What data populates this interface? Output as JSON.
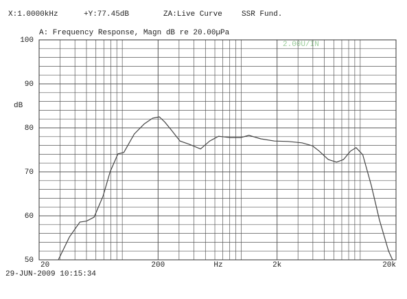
{
  "chart_data": {
    "type": "line",
    "header": [
      "X:1.0000kHz",
      "+Y:77.45dB",
      "ZA:Live Curve",
      "SSR Fund."
    ],
    "title": "A: Frequency Response, Magn dB re 20.00µPa",
    "scale_note": "2.00U/IN",
    "y_label": "dB",
    "x_label": "Hz",
    "footer": "29-JUN-2009 10:15:34",
    "x_scale": "log",
    "xlim": [
      20,
      20000
    ],
    "ylim": [
      50,
      100
    ],
    "xticks": [
      {
        "value": 20,
        "label": "20"
      },
      {
        "value": 200,
        "label": "200"
      },
      {
        "value": 2000,
        "label": "2k"
      },
      {
        "value": 20000,
        "label": "20k"
      }
    ],
    "x_minor_ticks": [
      30,
      40,
      50,
      60,
      70,
      80,
      90,
      100,
      300,
      400,
      500,
      600,
      700,
      800,
      900,
      1000,
      3000,
      4000,
      5000,
      6000,
      7000,
      8000,
      9000,
      10000
    ],
    "yticks": [
      50,
      60,
      70,
      80,
      90,
      100
    ],
    "y_minor_ticks": [
      52,
      54,
      56,
      58,
      62,
      64,
      66,
      68,
      72,
      74,
      76,
      78,
      82,
      84,
      86,
      88,
      92,
      94,
      96,
      98
    ],
    "grid": true,
    "grid_color": "#555",
    "series": [
      {
        "name": "A",
        "color": "#444",
        "x": [
          29,
          36,
          44,
          50,
          58,
          69,
          79,
          92,
          103,
          126,
          153,
          180,
          205,
          228,
          260,
          306,
          363,
          455,
          543,
          644,
          808,
          990,
          1160,
          1460,
          1900,
          2480,
          3240,
          3970,
          4530,
          5390,
          6330,
          7240,
          8280,
          9230,
          10500,
          12400,
          14500,
          17300,
          18700
        ],
        "values": [
          50,
          55.2,
          58.6,
          58.8,
          59.7,
          64.5,
          70,
          74.1,
          74.4,
          78.6,
          80.9,
          82.2,
          82.5,
          81.3,
          79.4,
          77,
          76.3,
          75.2,
          77,
          78.1,
          77.8,
          77.8,
          78.3,
          77.5,
          77,
          76.9,
          76.6,
          75.9,
          74.7,
          72.8,
          72.2,
          72.8,
          74.7,
          75.5,
          73.9,
          66.9,
          59.1,
          52,
          50
        ]
      }
    ]
  }
}
